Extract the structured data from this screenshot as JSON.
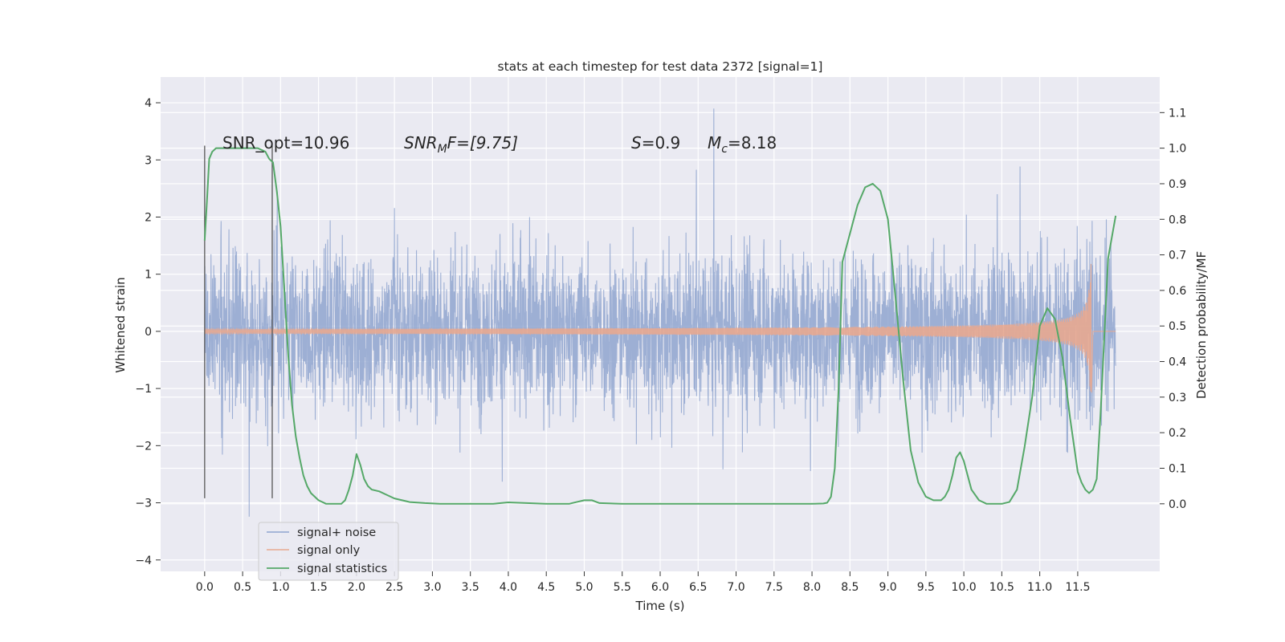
{
  "chart_data": {
    "type": "line",
    "title": "stats at each timestep for test data 2372 [signal=1]",
    "xlabel": "Time (s)",
    "ylabel_left": "Whitened strain",
    "ylabel_right": "Detection probability/MF",
    "xlim": [
      -0.58,
      12.58
    ],
    "ylim_left": [
      -4.2,
      4.45
    ],
    "ylim_right": [
      -0.19,
      1.2
    ],
    "xticks": [
      "0.0",
      "0.5",
      "1.0",
      "1.5",
      "2.0",
      "2.5",
      "3.0",
      "3.5",
      "4.0",
      "4.5",
      "5.0",
      "5.5",
      "6.0",
      "6.5",
      "7.0",
      "7.5",
      "8.0",
      "8.5",
      "9.0",
      "9.5",
      "10.0",
      "10.5",
      "11.0",
      "11.5"
    ],
    "yticks_left": [
      "4",
      "3",
      "2",
      "1",
      "0",
      "−1",
      "−2",
      "−3",
      "−4"
    ],
    "yticks_right": [
      "1.1",
      "1.0",
      "0.9",
      "0.8",
      "0.7",
      "0.6",
      "0.5",
      "0.4",
      "0.3",
      "0.2",
      "0.1",
      "0.0"
    ],
    "grid": true,
    "legend": {
      "placement": "lower-left",
      "entries": [
        {
          "name": "signal+ noise",
          "color": "#8fa5cf"
        },
        {
          "name": "signal only",
          "color": "#e8a990"
        },
        {
          "name": "signal statistics",
          "color": "#55a868"
        }
      ]
    },
    "annotations": {
      "snr_opt": "SNR_opt=10.96",
      "snr_mf_main": "SNR",
      "snr_mf_sub": "M",
      "snr_mf_rest": "F=[9.75]",
      "s_main": "S",
      "s_rest": "=0.9",
      "mc_main": "M",
      "mc_sub": "c",
      "mc_rest": "=8.18"
    },
    "vertical_markers_x": [
      0.0,
      0.89
    ],
    "series": [
      {
        "name": "signal+ noise",
        "color": "#8fa5cf",
        "axis": "left",
        "x_range": [
          0.0,
          12.0
        ],
        "envelope_typical": 2.2,
        "envelope_max": 4.1,
        "dense": true
      },
      {
        "name": "signal only",
        "color": "#e8a990",
        "axis": "left",
        "x_range": [
          0.0,
          12.0
        ],
        "chirp_end_x": 11.68,
        "peak_amplitude": 1.2
      },
      {
        "name": "signal statistics",
        "color": "#55a868",
        "axis": "right",
        "x": [
          0.0,
          0.03,
          0.06,
          0.1,
          0.15,
          0.2,
          0.3,
          0.5,
          0.7,
          0.8,
          0.85,
          0.9,
          0.95,
          1.0,
          1.05,
          1.1,
          1.15,
          1.2,
          1.25,
          1.3,
          1.35,
          1.4,
          1.5,
          1.6,
          1.7,
          1.8,
          1.85,
          1.9,
          1.95,
          2.0,
          2.05,
          2.1,
          2.15,
          2.2,
          2.3,
          2.4,
          2.5,
          2.7,
          2.9,
          3.1,
          3.5,
          3.8,
          4.0,
          4.5,
          4.8,
          4.9,
          5.0,
          5.1,
          5.2,
          5.5,
          6.0,
          7.0,
          8.0,
          8.15,
          8.2,
          8.25,
          8.3,
          8.35,
          8.4,
          8.5,
          8.6,
          8.7,
          8.8,
          8.9,
          9.0,
          9.1,
          9.2,
          9.3,
          9.4,
          9.5,
          9.6,
          9.7,
          9.75,
          9.8,
          9.85,
          9.9,
          9.95,
          10.0,
          10.05,
          10.1,
          10.2,
          10.3,
          10.4,
          10.5,
          10.6,
          10.7,
          10.8,
          10.9,
          11.0,
          11.1,
          11.2,
          11.3,
          11.4,
          11.5,
          11.55,
          11.6,
          11.65,
          11.7,
          11.75,
          11.8,
          11.9,
          12.0
        ],
        "y": [
          0.74,
          0.85,
          0.97,
          0.99,
          1.0,
          1.0,
          1.0,
          1.0,
          1.0,
          0.99,
          0.97,
          0.96,
          0.88,
          0.78,
          0.6,
          0.42,
          0.28,
          0.19,
          0.13,
          0.08,
          0.05,
          0.03,
          0.01,
          0.0,
          0.0,
          0.0,
          0.01,
          0.04,
          0.08,
          0.14,
          0.11,
          0.07,
          0.05,
          0.04,
          0.035,
          0.025,
          0.015,
          0.005,
          0.002,
          0.0,
          0.0,
          0.0,
          0.004,
          0.0,
          0.0,
          0.005,
          0.01,
          0.01,
          0.002,
          0.0,
          0.0,
          0.0,
          0.0,
          0.001,
          0.003,
          0.02,
          0.1,
          0.32,
          0.68,
          0.76,
          0.84,
          0.89,
          0.9,
          0.88,
          0.8,
          0.58,
          0.35,
          0.15,
          0.06,
          0.02,
          0.01,
          0.01,
          0.02,
          0.04,
          0.08,
          0.13,
          0.145,
          0.12,
          0.08,
          0.04,
          0.01,
          0.0,
          0.0,
          0.0,
          0.005,
          0.04,
          0.16,
          0.3,
          0.5,
          0.55,
          0.52,
          0.41,
          0.24,
          0.09,
          0.06,
          0.04,
          0.03,
          0.04,
          0.07,
          0.25,
          0.69,
          0.81
        ]
      }
    ]
  }
}
